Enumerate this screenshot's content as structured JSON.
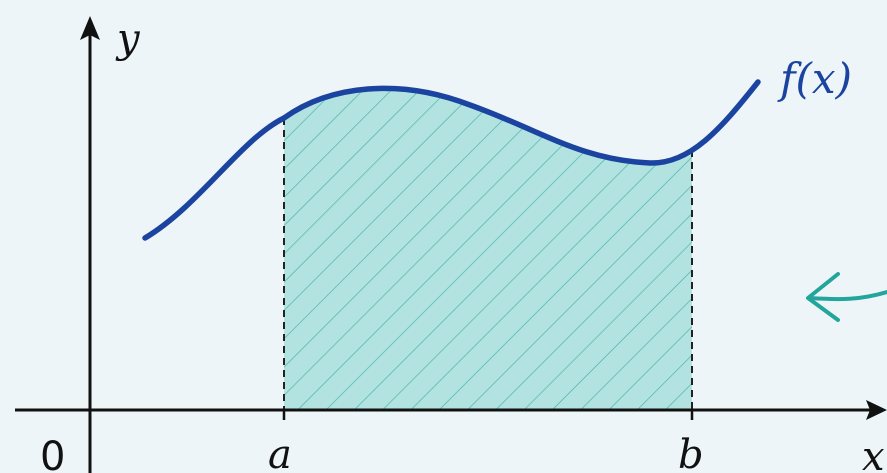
{
  "labels": {
    "y_axis": "y",
    "x_axis": "x",
    "origin": "0",
    "a": "a",
    "b": "b",
    "function": "f(x)"
  },
  "colors": {
    "background": "#eef5f8",
    "axis": "#111111",
    "curve": "#1a44a0",
    "fill": "#9fdcd8",
    "hatch": "#3aaaa3",
    "arrow": "#22a69c",
    "dash": "#222222"
  }
}
